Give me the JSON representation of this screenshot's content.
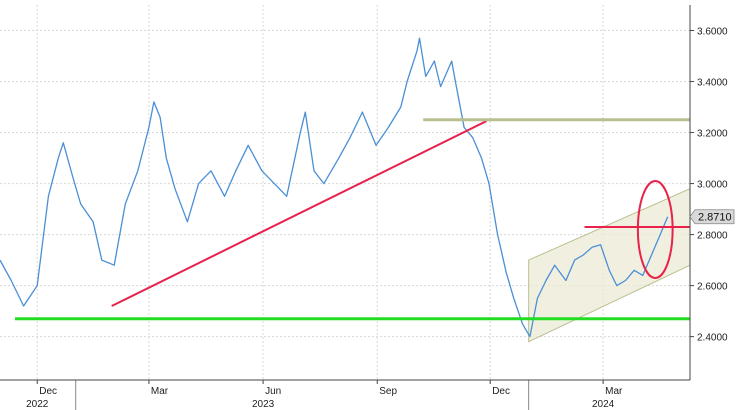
{
  "colors": {
    "price_line": "#4a8fd6",
    "support_line": "#22dd22",
    "trend_line": "#e8224a",
    "resistance_line": "#b9c08f",
    "channel_fill": "#ecebd6",
    "highlight_circle": "#e8224a",
    "grid": "#d8d8d8"
  },
  "chart_data": {
    "type": "line",
    "title": "",
    "xlabel": "",
    "ylabel": "",
    "ylim": [
      2.23,
      3.7
    ],
    "y_ticks": [
      "2.4000",
      "2.6000",
      "2.8000",
      "3.0000",
      "3.2000",
      "3.4000",
      "3.6000"
    ],
    "y_tick_values": [
      2.4,
      2.6,
      2.8,
      3.0,
      3.2,
      3.4,
      3.6
    ],
    "x_month_labels": [
      {
        "label": "Dec",
        "date": "2022-12-01"
      },
      {
        "label": "Mar",
        "date": "2023-03-01"
      },
      {
        "label": "Jun",
        "date": "2023-06-01"
      },
      {
        "label": "Sep",
        "date": "2023-09-01"
      },
      {
        "label": "Dec",
        "date": "2023-12-01"
      },
      {
        "label": "Mar",
        "date": "2024-03-01"
      }
    ],
    "x_year_labels": [
      {
        "label": "2022",
        "date": "2022-12-01"
      },
      {
        "label": "2023",
        "date": "2023-06-01"
      },
      {
        "label": "2024",
        "date": "2024-03-01"
      }
    ],
    "x_range": [
      "2022-11-01",
      "2024-05-10"
    ],
    "last_value_label": "2.8710",
    "grid": true,
    "series": [
      {
        "points": [
          [
            "2022-11-01",
            2.7
          ],
          [
            "2022-11-10",
            2.62
          ],
          [
            "2022-11-20",
            2.52
          ],
          [
            "2022-12-01",
            2.6
          ],
          [
            "2022-12-10",
            2.95
          ],
          [
            "2022-12-18",
            3.1
          ],
          [
            "2022-12-22",
            3.16
          ],
          [
            "2022-12-30",
            3.02
          ],
          [
            "2023-01-05",
            2.92
          ],
          [
            "2023-01-15",
            2.85
          ],
          [
            "2023-01-22",
            2.7
          ],
          [
            "2023-02-01",
            2.68
          ],
          [
            "2023-02-10",
            2.92
          ],
          [
            "2023-02-20",
            3.05
          ],
          [
            "2023-03-01",
            3.22
          ],
          [
            "2023-03-05",
            3.32
          ],
          [
            "2023-03-10",
            3.26
          ],
          [
            "2023-03-15",
            3.1
          ],
          [
            "2023-03-22",
            2.98
          ],
          [
            "2023-04-01",
            2.85
          ],
          [
            "2023-04-10",
            3.0
          ],
          [
            "2023-04-20",
            3.05
          ],
          [
            "2023-05-01",
            2.95
          ],
          [
            "2023-05-10",
            3.05
          ],
          [
            "2023-05-20",
            3.15
          ],
          [
            "2023-05-31",
            3.05
          ],
          [
            "2023-06-10",
            3.0
          ],
          [
            "2023-06-20",
            2.95
          ],
          [
            "2023-07-01",
            3.2
          ],
          [
            "2023-07-05",
            3.28
          ],
          [
            "2023-07-12",
            3.05
          ],
          [
            "2023-07-20",
            3.0
          ],
          [
            "2023-08-01",
            3.1
          ],
          [
            "2023-08-10",
            3.18
          ],
          [
            "2023-08-20",
            3.28
          ],
          [
            "2023-08-31",
            3.15
          ],
          [
            "2023-09-10",
            3.22
          ],
          [
            "2023-09-20",
            3.3
          ],
          [
            "2023-09-25",
            3.4
          ],
          [
            "2023-10-03",
            3.52
          ],
          [
            "2023-10-05",
            3.57
          ],
          [
            "2023-10-10",
            3.42
          ],
          [
            "2023-10-17",
            3.48
          ],
          [
            "2023-10-22",
            3.38
          ],
          [
            "2023-10-31",
            3.48
          ],
          [
            "2023-11-03",
            3.4
          ],
          [
            "2023-11-10",
            3.22
          ],
          [
            "2023-11-17",
            3.18
          ],
          [
            "2023-11-24",
            3.1
          ],
          [
            "2023-11-30",
            3.0
          ],
          [
            "2023-12-07",
            2.8
          ],
          [
            "2023-12-14",
            2.65
          ],
          [
            "2023-12-20",
            2.55
          ],
          [
            "2023-12-27",
            2.45
          ],
          [
            "2024-01-02",
            2.4
          ],
          [
            "2024-01-08",
            2.55
          ],
          [
            "2024-01-15",
            2.62
          ],
          [
            "2024-01-22",
            2.68
          ],
          [
            "2024-01-31",
            2.62
          ],
          [
            "2024-02-07",
            2.7
          ],
          [
            "2024-02-14",
            2.72
          ],
          [
            "2024-02-21",
            2.75
          ],
          [
            "2024-02-28",
            2.76
          ],
          [
            "2024-03-06",
            2.66
          ],
          [
            "2024-03-12",
            2.6
          ],
          [
            "2024-03-19",
            2.62
          ],
          [
            "2024-03-26",
            2.66
          ],
          [
            "2024-04-02",
            2.64
          ],
          [
            "2024-04-09",
            2.72
          ],
          [
            "2024-04-16",
            2.8
          ],
          [
            "2024-04-22",
            2.87
          ]
        ]
      }
    ],
    "annotations": {
      "support_line": {
        "x0": "2022-11-01",
        "x1": "2024-05-10",
        "y": 2.47
      },
      "trend_line": {
        "x0": "2023-01-30",
        "y0": 2.52,
        "x1": "2023-11-28",
        "y1": 3.245
      },
      "resistance_line": {
        "x0": "2023-10-08",
        "x1": "2024-05-10",
        "y": 3.25
      },
      "channel": {
        "x0": "2024-01-01",
        "x1": "2024-05-10",
        "upper_y0": 2.7,
        "upper_y1": 2.98,
        "lower_y0": 2.38,
        "lower_y1": 2.68
      },
      "level_line": {
        "x0": "2024-02-15",
        "x1": "2024-05-10",
        "y": 2.83
      },
      "highlight_ellipse": {
        "center_date": "2024-04-12",
        "center_y": 2.82,
        "half_span_days": 14,
        "half_span_y": 0.19
      }
    }
  }
}
